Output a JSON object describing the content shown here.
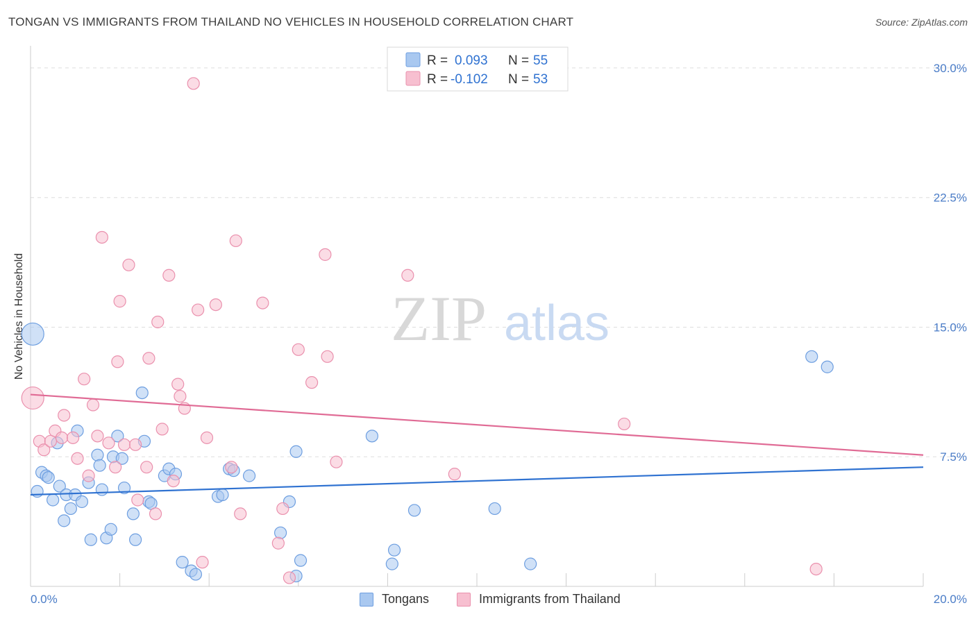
{
  "title": "TONGAN VS IMMIGRANTS FROM THAILAND NO VEHICLES IN HOUSEHOLD CORRELATION CHART",
  "source": "Source: ZipAtlas.com",
  "watermark": {
    "zip": "ZIP",
    "atlas": "atlas"
  },
  "colors": {
    "blue_fill": "#a9c8f0",
    "blue_stroke": "#6d9ee0",
    "blue_line": "#2f72d1",
    "pink_fill": "#f7bfd0",
    "pink_stroke": "#ea90ad",
    "pink_line": "#e06b95",
    "tick_text": "#4a7cc7",
    "grid": "#dddddd"
  },
  "legend_top": {
    "rows": [
      {
        "r_label": "R = ",
        "r_value": "0.093",
        "n_label": "N = ",
        "n_value": "55"
      },
      {
        "r_label": "R = ",
        "r_value": "-0.102",
        "n_label": "N = ",
        "n_value": "53"
      }
    ]
  },
  "legend_bottom": [
    "Tongans",
    "Immigrants from Thailand"
  ],
  "chart_data": {
    "type": "scatter",
    "title": "TONGAN VS IMMIGRANTS FROM THAILAND NO VEHICLES IN HOUSEHOLD CORRELATION CHART",
    "xlabel": "",
    "ylabel": "No Vehicles in Household",
    "xlim": [
      0,
      20
    ],
    "ylim": [
      0,
      30.8
    ],
    "x_ticks": [
      "0.0%",
      "20.0%"
    ],
    "y_ticks": [
      {
        "value": 7.5,
        "label": "7.5%"
      },
      {
        "value": 15.0,
        "label": "15.0%"
      },
      {
        "value": 22.5,
        "label": "22.5%"
      },
      {
        "value": 30.0,
        "label": "30.0%"
      }
    ],
    "series": [
      {
        "name": "Tongans",
        "color": "blue",
        "trend": {
          "x": [
            0,
            20
          ],
          "y": [
            5.3,
            6.9
          ]
        },
        "points": [
          {
            "x": 0.05,
            "y": 14.6,
            "big": true
          },
          {
            "x": 0.15,
            "y": 5.5
          },
          {
            "x": 0.25,
            "y": 6.6
          },
          {
            "x": 0.35,
            "y": 6.4
          },
          {
            "x": 0.4,
            "y": 6.3
          },
          {
            "x": 0.5,
            "y": 5.0
          },
          {
            "x": 0.6,
            "y": 8.3
          },
          {
            "x": 0.65,
            "y": 5.8
          },
          {
            "x": 0.75,
            "y": 3.8
          },
          {
            "x": 0.8,
            "y": 5.3
          },
          {
            "x": 0.9,
            "y": 4.5
          },
          {
            "x": 1.0,
            "y": 5.3
          },
          {
            "x": 1.05,
            "y": 9.0
          },
          {
            "x": 1.15,
            "y": 4.9
          },
          {
            "x": 1.3,
            "y": 6.0
          },
          {
            "x": 1.35,
            "y": 2.7
          },
          {
            "x": 1.5,
            "y": 7.6
          },
          {
            "x": 1.55,
            "y": 7.0
          },
          {
            "x": 1.6,
            "y": 5.6
          },
          {
            "x": 1.7,
            "y": 2.8
          },
          {
            "x": 1.8,
            "y": 3.3
          },
          {
            "x": 1.85,
            "y": 7.5
          },
          {
            "x": 1.95,
            "y": 8.7
          },
          {
            "x": 2.05,
            "y": 7.4
          },
          {
            "x": 2.1,
            "y": 5.7
          },
          {
            "x": 2.3,
            "y": 4.2
          },
          {
            "x": 2.35,
            "y": 2.7
          },
          {
            "x": 2.5,
            "y": 11.2
          },
          {
            "x": 2.55,
            "y": 8.4
          },
          {
            "x": 2.65,
            "y": 4.9
          },
          {
            "x": 2.7,
            "y": 4.8
          },
          {
            "x": 3.0,
            "y": 6.4
          },
          {
            "x": 3.1,
            "y": 6.8
          },
          {
            "x": 3.25,
            "y": 6.5
          },
          {
            "x": 3.4,
            "y": 1.4
          },
          {
            "x": 3.6,
            "y": 0.9
          },
          {
            "x": 3.7,
            "y": 0.7
          },
          {
            "x": 4.2,
            "y": 5.2
          },
          {
            "x": 4.3,
            "y": 5.3
          },
          {
            "x": 4.45,
            "y": 6.8
          },
          {
            "x": 4.55,
            "y": 6.7
          },
          {
            "x": 4.9,
            "y": 6.4
          },
          {
            "x": 5.6,
            "y": 3.1
          },
          {
            "x": 5.8,
            "y": 4.9
          },
          {
            "x": 5.95,
            "y": 0.6
          },
          {
            "x": 5.95,
            "y": 7.8
          },
          {
            "x": 6.05,
            "y": 1.5
          },
          {
            "x": 7.65,
            "y": 8.7
          },
          {
            "x": 8.1,
            "y": 1.3
          },
          {
            "x": 8.15,
            "y": 2.1
          },
          {
            "x": 8.6,
            "y": 4.4
          },
          {
            "x": 10.4,
            "y": 4.5
          },
          {
            "x": 11.2,
            "y": 1.3
          },
          {
            "x": 17.5,
            "y": 13.3
          },
          {
            "x": 17.85,
            "y": 12.7
          }
        ]
      },
      {
        "name": "Immigrants from Thailand",
        "color": "pink",
        "trend": {
          "x": [
            0,
            20
          ],
          "y": [
            11.1,
            7.6
          ]
        },
        "points": [
          {
            "x": 0.05,
            "y": 10.9,
            "big": true
          },
          {
            "x": 0.2,
            "y": 8.4
          },
          {
            "x": 0.3,
            "y": 7.9
          },
          {
            "x": 0.45,
            "y": 8.4
          },
          {
            "x": 0.55,
            "y": 9.0
          },
          {
            "x": 0.7,
            "y": 8.6
          },
          {
            "x": 0.75,
            "y": 9.9
          },
          {
            "x": 0.95,
            "y": 8.6
          },
          {
            "x": 1.05,
            "y": 7.4
          },
          {
            "x": 1.2,
            "y": 12.0
          },
          {
            "x": 1.3,
            "y": 6.4
          },
          {
            "x": 1.4,
            "y": 10.5
          },
          {
            "x": 1.5,
            "y": 8.7
          },
          {
            "x": 1.6,
            "y": 20.2
          },
          {
            "x": 1.75,
            "y": 8.3
          },
          {
            "x": 1.9,
            "y": 6.9
          },
          {
            "x": 1.95,
            "y": 13.0
          },
          {
            "x": 2.0,
            "y": 16.5
          },
          {
            "x": 2.1,
            "y": 8.2
          },
          {
            "x": 2.2,
            "y": 18.6
          },
          {
            "x": 2.35,
            "y": 8.2
          },
          {
            "x": 2.4,
            "y": 5.0
          },
          {
            "x": 2.6,
            "y": 6.9
          },
          {
            "x": 2.65,
            "y": 13.2
          },
          {
            "x": 2.8,
            "y": 4.2
          },
          {
            "x": 2.85,
            "y": 15.3
          },
          {
            "x": 2.95,
            "y": 9.1
          },
          {
            "x": 3.1,
            "y": 18.0
          },
          {
            "x": 3.2,
            "y": 6.1
          },
          {
            "x": 3.3,
            "y": 11.7
          },
          {
            "x": 3.35,
            "y": 11.0
          },
          {
            "x": 3.45,
            "y": 10.3
          },
          {
            "x": 3.65,
            "y": 29.1
          },
          {
            "x": 3.75,
            "y": 16.0
          },
          {
            "x": 3.85,
            "y": 1.4
          },
          {
            "x": 3.95,
            "y": 8.6
          },
          {
            "x": 4.15,
            "y": 16.3
          },
          {
            "x": 4.5,
            "y": 6.9
          },
          {
            "x": 4.6,
            "y": 20.0
          },
          {
            "x": 4.7,
            "y": 4.2
          },
          {
            "x": 5.2,
            "y": 16.4
          },
          {
            "x": 5.55,
            "y": 2.5
          },
          {
            "x": 5.65,
            "y": 4.5
          },
          {
            "x": 5.8,
            "y": 0.5
          },
          {
            "x": 6.0,
            "y": 13.7
          },
          {
            "x": 6.3,
            "y": 11.8
          },
          {
            "x": 6.6,
            "y": 19.2
          },
          {
            "x": 6.65,
            "y": 13.3
          },
          {
            "x": 6.85,
            "y": 7.2
          },
          {
            "x": 8.45,
            "y": 18.0
          },
          {
            "x": 9.5,
            "y": 6.5
          },
          {
            "x": 13.3,
            "y": 9.4
          },
          {
            "x": 17.6,
            "y": 1.0
          }
        ]
      }
    ]
  }
}
